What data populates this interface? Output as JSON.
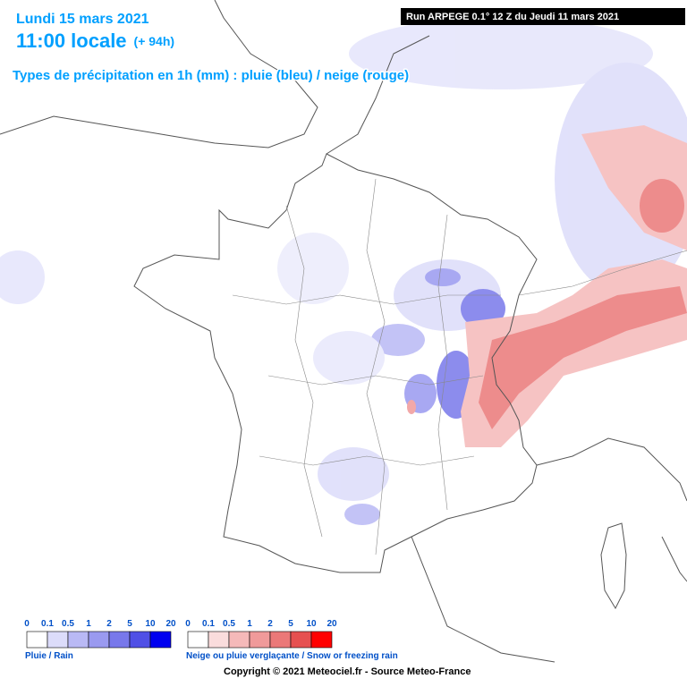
{
  "header": {
    "date": "Lundi 15 mars 2021",
    "time": "11:00 locale",
    "lead": "(+ 94h)",
    "subtitle": "Types de précipitation en 1h (mm) : pluie (bleu) / neige (rouge)",
    "run": "Run ARPEGE 0.1° 12 Z du Jeudi 11 mars 2021"
  },
  "legend": [
    {
      "title": "Pluie / Rain",
      "ticks": [
        0,
        0.1,
        0.5,
        1,
        2,
        5,
        10,
        20
      ],
      "colors": [
        "#ffffff",
        "#dcdcfa",
        "#b9b9f5",
        "#9a9af0",
        "#7878eb",
        "#5050e6",
        "#0000f0"
      ]
    },
    {
      "title": "Neige ou pluie verglaçante / Snow or freezing rain",
      "ticks": [
        0,
        0.1,
        0.5,
        1,
        2,
        5,
        10,
        20
      ],
      "colors": [
        "#ffffff",
        "#fadcdc",
        "#f5b9b9",
        "#f09a9a",
        "#eb7878",
        "#e65050",
        "#ff0000"
      ]
    }
  ],
  "footer": "Copyright © 2021 Meteociel.fr - Source Meteo-France"
}
